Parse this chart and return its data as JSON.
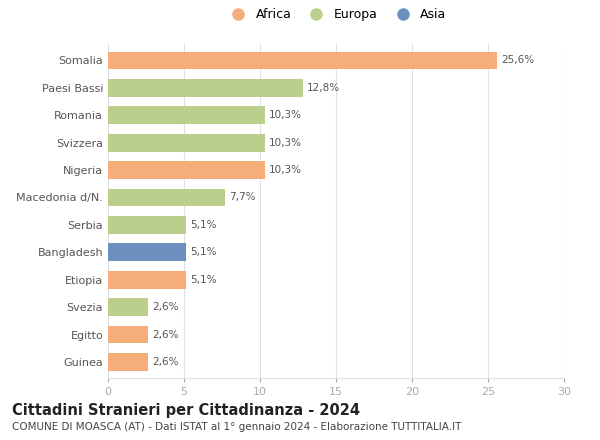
{
  "countries": [
    "Guinea",
    "Egitto",
    "Svezia",
    "Etiopia",
    "Bangladesh",
    "Serbia",
    "Macedonia d/N.",
    "Nigeria",
    "Svizzera",
    "Romania",
    "Paesi Bassi",
    "Somalia"
  ],
  "values": [
    2.6,
    2.6,
    2.6,
    5.1,
    5.1,
    5.1,
    7.7,
    10.3,
    10.3,
    10.3,
    12.8,
    25.6
  ],
  "labels": [
    "2,6%",
    "2,6%",
    "2,6%",
    "5,1%",
    "5,1%",
    "5,1%",
    "7,7%",
    "10,3%",
    "10,3%",
    "10,3%",
    "12,8%",
    "25,6%"
  ],
  "continents": [
    "Africa",
    "Africa",
    "Europa",
    "Africa",
    "Asia",
    "Europa",
    "Europa",
    "Africa",
    "Europa",
    "Europa",
    "Europa",
    "Africa"
  ],
  "colors": {
    "Africa": "#F5AD7A",
    "Europa": "#BACF8C",
    "Asia": "#6B8FBF"
  },
  "legend_order": [
    "Africa",
    "Europa",
    "Asia"
  ],
  "title": "Cittadini Stranieri per Cittadinanza - 2024",
  "subtitle": "COMUNE DI MOASCA (AT) - Dati ISTAT al 1° gennaio 2024 - Elaborazione TUTTITALIA.IT",
  "xlim": [
    0,
    30
  ],
  "xticks": [
    0,
    5,
    10,
    15,
    20,
    25,
    30
  ],
  "background_color": "#ffffff",
  "grid_color": "#e0e0e0",
  "bar_height": 0.65,
  "title_fontsize": 10.5,
  "subtitle_fontsize": 7.5,
  "label_fontsize": 7.5,
  "tick_fontsize": 8,
  "legend_fontsize": 9
}
